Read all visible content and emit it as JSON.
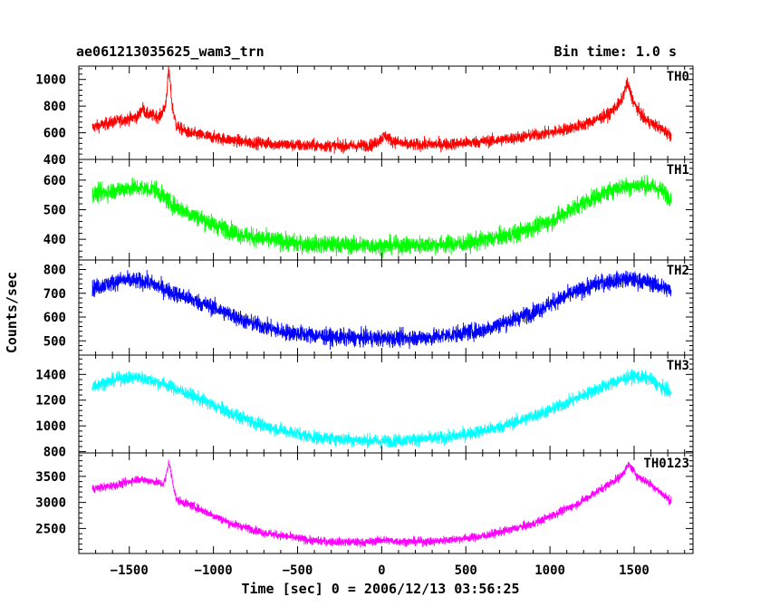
{
  "header": {
    "filename": "ae061213035625_wam3_trn",
    "bin_time": "Bin time: 1.0 s"
  },
  "chart_data": {
    "type": "line",
    "xlabel": "Time [sec] 0 = 2006/12/13 03:56:25",
    "ylabel": "Counts/sec",
    "xlim": [
      -1800,
      1850
    ],
    "x_range_data": [
      -1720,
      1720
    ],
    "x_ticks": [
      -1500,
      -1000,
      -500,
      0,
      500,
      1000,
      1500
    ],
    "x_tick_labels": [
      "−1500",
      "−1000",
      "−500",
      "0",
      "500",
      "1000",
      "1500"
    ],
    "grid": false,
    "panels": [
      {
        "label": "TH0",
        "color": "#ff0000",
        "ylim": [
          400,
          1100
        ],
        "yticks": [
          400,
          600,
          800,
          1000
        ],
        "noise": 45,
        "profile": [
          [
            -1720,
            640
          ],
          [
            -1600,
            680
          ],
          [
            -1450,
            720
          ],
          [
            -1420,
            790
          ],
          [
            -1400,
            740
          ],
          [
            -1320,
            720
          ],
          [
            -1285,
            800
          ],
          [
            -1265,
            1080
          ],
          [
            -1245,
            800
          ],
          [
            -1220,
            650
          ],
          [
            -1150,
            600
          ],
          [
            -1000,
            565
          ],
          [
            -800,
            530
          ],
          [
            -500,
            505
          ],
          [
            -200,
            500
          ],
          [
            -50,
            510
          ],
          [
            20,
            580
          ],
          [
            60,
            540
          ],
          [
            150,
            510
          ],
          [
            400,
            515
          ],
          [
            700,
            545
          ],
          [
            1000,
            600
          ],
          [
            1200,
            660
          ],
          [
            1350,
            740
          ],
          [
            1420,
            830
          ],
          [
            1460,
            970
          ],
          [
            1500,
            820
          ],
          [
            1560,
            700
          ],
          [
            1650,
            640
          ],
          [
            1720,
            580
          ]
        ]
      },
      {
        "label": "TH1",
        "color": "#00ff00",
        "ylim": [
          330,
          670
        ],
        "yticks": [
          400,
          500,
          600
        ],
        "noise": 30,
        "profile": [
          [
            -1720,
            550
          ],
          [
            -1500,
            575
          ],
          [
            -1350,
            570
          ],
          [
            -1250,
            520
          ],
          [
            -1150,
            490
          ],
          [
            -1000,
            450
          ],
          [
            -800,
            410
          ],
          [
            -500,
            385
          ],
          [
            0,
            378
          ],
          [
            500,
            385
          ],
          [
            800,
            420
          ],
          [
            1000,
            460
          ],
          [
            1200,
            525
          ],
          [
            1400,
            575
          ],
          [
            1550,
            585
          ],
          [
            1650,
            570
          ],
          [
            1720,
            540
          ]
        ]
      },
      {
        "label": "TH2",
        "color": "#0000ff",
        "ylim": [
          440,
          840
        ],
        "yticks": [
          500,
          600,
          700,
          800
        ],
        "noise": 35,
        "profile": [
          [
            -1720,
            720
          ],
          [
            -1550,
            755
          ],
          [
            -1400,
            750
          ],
          [
            -1250,
            705
          ],
          [
            -1000,
            640
          ],
          [
            -800,
            580
          ],
          [
            -600,
            540
          ],
          [
            -300,
            515
          ],
          [
            0,
            510
          ],
          [
            300,
            515
          ],
          [
            600,
            545
          ],
          [
            900,
            620
          ],
          [
            1100,
            690
          ],
          [
            1300,
            745
          ],
          [
            1450,
            760
          ],
          [
            1600,
            745
          ],
          [
            1720,
            710
          ]
        ]
      },
      {
        "label": "TH3",
        "color": "#00ffff",
        "ylim": [
          790,
          1550
        ],
        "yticks": [
          800,
          1000,
          1200,
          1400
        ],
        "noise": 50,
        "profile": [
          [
            -1720,
            1310
          ],
          [
            -1550,
            1370
          ],
          [
            -1450,
            1380
          ],
          [
            -1300,
            1330
          ],
          [
            -1100,
            1220
          ],
          [
            -900,
            1100
          ],
          [
            -700,
            1000
          ],
          [
            -400,
            910
          ],
          [
            0,
            880
          ],
          [
            400,
            910
          ],
          [
            700,
            990
          ],
          [
            1000,
            1120
          ],
          [
            1250,
            1270
          ],
          [
            1400,
            1350
          ],
          [
            1500,
            1390
          ],
          [
            1600,
            1360
          ],
          [
            1720,
            1250
          ]
        ]
      },
      {
        "label": "TH0123",
        "color": "#ff00ff",
        "ylim": [
          2020,
          3950
        ],
        "yticks": [
          2500,
          3000,
          3500
        ],
        "noise": 80,
        "profile": [
          [
            -1720,
            3260
          ],
          [
            -1550,
            3350
          ],
          [
            -1450,
            3450
          ],
          [
            -1350,
            3400
          ],
          [
            -1300,
            3350
          ],
          [
            -1285,
            3450
          ],
          [
            -1265,
            3780
          ],
          [
            -1245,
            3450
          ],
          [
            -1220,
            3050
          ],
          [
            -1100,
            2900
          ],
          [
            -900,
            2600
          ],
          [
            -700,
            2420
          ],
          [
            -400,
            2260
          ],
          [
            -100,
            2230
          ],
          [
            0,
            2280
          ],
          [
            100,
            2250
          ],
          [
            300,
            2250
          ],
          [
            600,
            2350
          ],
          [
            900,
            2590
          ],
          [
            1150,
            2950
          ],
          [
            1300,
            3250
          ],
          [
            1420,
            3500
          ],
          [
            1470,
            3730
          ],
          [
            1520,
            3500
          ],
          [
            1600,
            3350
          ],
          [
            1720,
            3020
          ]
        ]
      }
    ]
  }
}
